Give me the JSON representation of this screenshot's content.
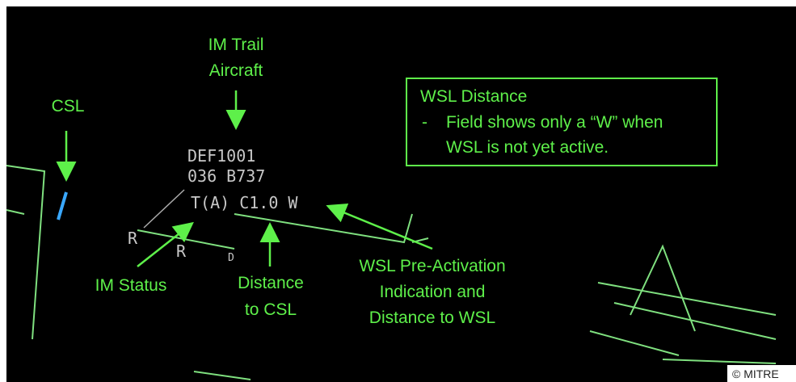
{
  "annotations": {
    "im_trail": {
      "line1": "IM Trail",
      "line2": "Aircraft"
    },
    "csl": "CSL",
    "im_status": "IM Status",
    "distance_csl": {
      "line1": "Distance",
      "line2": "to CSL"
    },
    "wsl_pre": {
      "line1": "WSL Pre-Activation",
      "line2": "Indication and",
      "line3": "Distance to WSL"
    },
    "box": {
      "title": "WSL Distance",
      "bullet": "-",
      "line1": "Field shows only a “W” when",
      "line2": "WSL is not yet active."
    }
  },
  "datablock": {
    "callsign": "DEF1001",
    "line2": "036 B737",
    "line3": "T(A) C1.0 W"
  },
  "symbols": {
    "r1": "R",
    "r2": "R",
    "d": "D"
  },
  "copyright": "© MITRE"
}
